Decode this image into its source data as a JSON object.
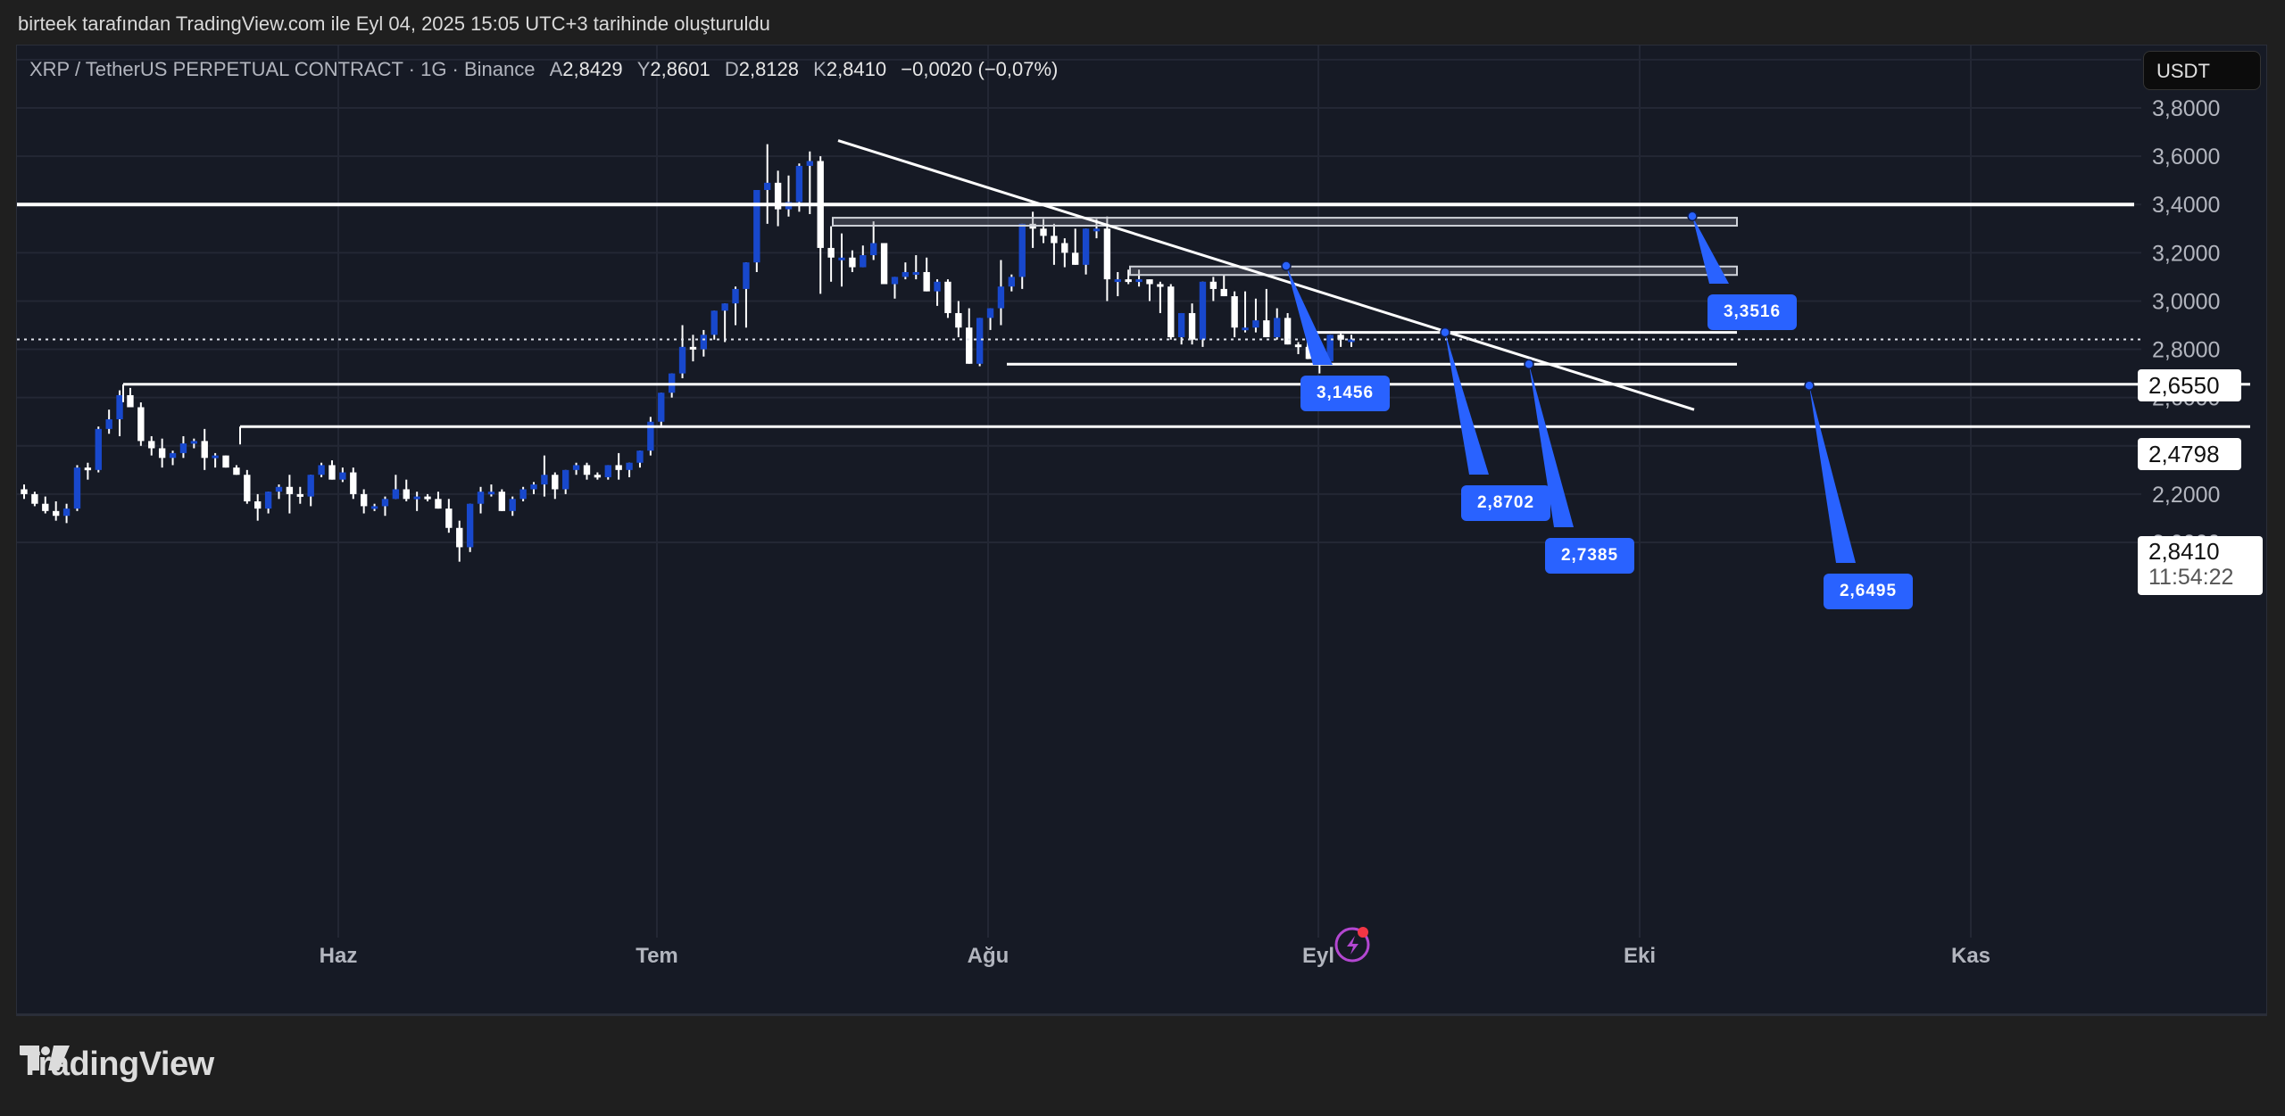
{
  "caption": "birteek tarafından TradingView.com ile Eyl 04, 2025 15:05 UTC+3 tarihinde oluşturuldu",
  "legend": {
    "symbol": "XRP / TetherUS PERPETUAL CONTRACT · 1G · Binance",
    "open_label": "A",
    "open": "2,8429",
    "high_label": "Y",
    "high": "2,8601",
    "low_label": "D",
    "low": "2,8128",
    "close_label": "K",
    "close": "2,8410",
    "change": "−0,0020 (−0,07%)"
  },
  "currency_button": "USDT",
  "price_tags": {
    "last_price": "2,8410",
    "countdown": "11:54:22",
    "level_1": "2,6550",
    "level_2": "2,4798"
  },
  "callouts": [
    {
      "label": "3,3516",
      "price": 3.3516
    },
    {
      "label": "3,1456",
      "price": 3.1456
    },
    {
      "label": "2,8702",
      "price": 2.8702
    },
    {
      "label": "2,7385",
      "price": 2.7385
    },
    {
      "label": "2,6495",
      "price": 2.6495
    }
  ],
  "brand": "TradingView",
  "colors": {
    "up": "#1848cc",
    "down": "#ffffff",
    "background": "#161a25",
    "grid": "#232734",
    "callout": "#2962ff",
    "lines": "#ffffff"
  },
  "chart_data": {
    "type": "candlestick",
    "title": "XRP / TetherUS PERPETUAL CONTRACT · 1G · Binance",
    "xlabel": "",
    "ylabel": "USDT",
    "ylim": [
      1.72,
      4.0
    ],
    "y_ticks": [
      "3,8000",
      "3,6000",
      "3,4000",
      "3,2000",
      "3,0000",
      "2,8000",
      "2,6000",
      "2,4000",
      "2,2000",
      "2,0000"
    ],
    "x_ticks": [
      "Haz",
      "Tem",
      "Ağu",
      "Eyl",
      "Eki",
      "Kas"
    ],
    "grid": true,
    "horizontal_lines": [
      3.4,
      2.655,
      2.4798,
      2.8702,
      2.7385
    ],
    "zones": [
      [
        3.31,
        3.34
      ],
      [
        3.11,
        3.145
      ]
    ],
    "trendline": {
      "from": [
        0,
        3.67
      ],
      "to": [
        0,
        2.54
      ]
    },
    "candles": [
      [
        2.22,
        2.24,
        2.18,
        2.2
      ],
      [
        2.2,
        2.21,
        2.15,
        2.16
      ],
      [
        2.16,
        2.19,
        2.12,
        2.13
      ],
      [
        2.13,
        2.17,
        2.09,
        2.11
      ],
      [
        2.11,
        2.16,
        2.08,
        2.14
      ],
      [
        2.14,
        2.32,
        2.13,
        2.31
      ],
      [
        2.31,
        2.33,
        2.26,
        2.3
      ],
      [
        2.3,
        2.48,
        2.29,
        2.47
      ],
      [
        2.47,
        2.55,
        2.45,
        2.51
      ],
      [
        2.51,
        2.63,
        2.44,
        2.61
      ],
      [
        2.61,
        2.64,
        2.56,
        2.56
      ],
      [
        2.56,
        2.58,
        2.4,
        2.42
      ],
      [
        2.42,
        2.44,
        2.36,
        2.39
      ],
      [
        2.39,
        2.43,
        2.31,
        2.35
      ],
      [
        2.35,
        2.38,
        2.32,
        2.37
      ],
      [
        2.37,
        2.44,
        2.35,
        2.41
      ],
      [
        2.41,
        2.43,
        2.39,
        2.42
      ],
      [
        2.42,
        2.47,
        2.3,
        2.35
      ],
      [
        2.35,
        2.37,
        2.31,
        2.36
      ],
      [
        2.36,
        2.36,
        2.31,
        2.31
      ],
      [
        2.31,
        2.32,
        2.28,
        2.28
      ],
      [
        2.28,
        2.3,
        2.16,
        2.17
      ],
      [
        2.17,
        2.2,
        2.09,
        2.14
      ],
      [
        2.14,
        2.21,
        2.12,
        2.21
      ],
      [
        2.21,
        2.24,
        2.18,
        2.23
      ],
      [
        2.23,
        2.28,
        2.12,
        2.2
      ],
      [
        2.2,
        2.23,
        2.16,
        2.19
      ],
      [
        2.19,
        2.28,
        2.15,
        2.28
      ],
      [
        2.28,
        2.33,
        2.27,
        2.32
      ],
      [
        2.32,
        2.34,
        2.26,
        2.26
      ],
      [
        2.26,
        2.31,
        2.25,
        2.29
      ],
      [
        2.29,
        2.31,
        2.18,
        2.2
      ],
      [
        2.2,
        2.22,
        2.12,
        2.15
      ],
      [
        2.15,
        2.16,
        2.13,
        2.15
      ],
      [
        2.15,
        2.19,
        2.11,
        2.18
      ],
      [
        2.18,
        2.28,
        2.18,
        2.22
      ],
      [
        2.22,
        2.26,
        2.17,
        2.18
      ],
      [
        2.18,
        2.21,
        2.13,
        2.19
      ],
      [
        2.19,
        2.2,
        2.17,
        2.18
      ],
      [
        2.18,
        2.21,
        2.14,
        2.14
      ],
      [
        2.14,
        2.18,
        2.04,
        2.06
      ],
      [
        2.06,
        2.09,
        1.92,
        1.98
      ],
      [
        1.98,
        2.16,
        1.96,
        2.16
      ],
      [
        2.16,
        2.23,
        2.12,
        2.21
      ],
      [
        2.21,
        2.24,
        2.19,
        2.21
      ],
      [
        2.21,
        2.22,
        2.13,
        2.13
      ],
      [
        2.13,
        2.19,
        2.11,
        2.18
      ],
      [
        2.18,
        2.23,
        2.17,
        2.22
      ],
      [
        2.22,
        2.25,
        2.2,
        2.24
      ],
      [
        2.24,
        2.36,
        2.19,
        2.28
      ],
      [
        2.28,
        2.29,
        2.18,
        2.22
      ],
      [
        2.22,
        2.3,
        2.2,
        2.3
      ],
      [
        2.3,
        2.33,
        2.28,
        2.32
      ],
      [
        2.32,
        2.33,
        2.26,
        2.28
      ],
      [
        2.28,
        2.29,
        2.26,
        2.27
      ],
      [
        2.27,
        2.3,
        2.26,
        2.32
      ],
      [
        2.32,
        2.37,
        2.26,
        2.3
      ],
      [
        2.3,
        2.33,
        2.27,
        2.33
      ],
      [
        2.33,
        2.38,
        2.31,
        2.38
      ],
      [
        2.38,
        2.52,
        2.36,
        2.5
      ],
      [
        2.5,
        2.57,
        2.48,
        2.62
      ],
      [
        2.62,
        2.66,
        2.6,
        2.7
      ],
      [
        2.7,
        2.9,
        2.68,
        2.81
      ],
      [
        2.81,
        2.86,
        2.75,
        2.8
      ],
      [
        2.8,
        2.88,
        2.77,
        2.86
      ],
      [
        2.86,
        2.96,
        2.84,
        2.96
      ],
      [
        2.96,
        2.98,
        2.83,
        2.99
      ],
      [
        2.99,
        3.06,
        2.9,
        3.05
      ],
      [
        3.05,
        3.09,
        2.89,
        3.16
      ],
      [
        3.16,
        3.41,
        3.12,
        3.46
      ],
      [
        3.46,
        3.65,
        3.32,
        3.49
      ],
      [
        3.49,
        3.54,
        3.31,
        3.38
      ],
      [
        3.38,
        3.52,
        3.35,
        3.41
      ],
      [
        3.41,
        3.57,
        3.37,
        3.56
      ],
      [
        3.56,
        3.62,
        3.36,
        3.58
      ],
      [
        3.58,
        3.6,
        3.03,
        3.22
      ],
      [
        3.22,
        3.31,
        3.08,
        3.18
      ],
      [
        3.18,
        3.28,
        3.06,
        3.18
      ],
      [
        3.18,
        3.21,
        3.12,
        3.14
      ],
      [
        3.14,
        3.23,
        3.14,
        3.19
      ],
      [
        3.19,
        3.33,
        3.17,
        3.24
      ],
      [
        3.24,
        3.22,
        3.11,
        3.07
      ],
      [
        3.07,
        3.09,
        3.01,
        3.1
      ],
      [
        3.1,
        3.16,
        3.09,
        3.12
      ],
      [
        3.12,
        3.19,
        3.09,
        3.12
      ],
      [
        3.12,
        3.18,
        3.05,
        3.04
      ],
      [
        3.04,
        3.09,
        2.98,
        3.08
      ],
      [
        3.08,
        3.09,
        2.93,
        2.95
      ],
      [
        2.95,
        3.0,
        2.85,
        2.89
      ],
      [
        2.89,
        2.97,
        2.76,
        2.74
      ],
      [
        2.74,
        2.74,
        2.73,
        2.93
      ],
      [
        2.93,
        2.97,
        2.88,
        2.97
      ],
      [
        2.97,
        3.17,
        2.9,
        3.06
      ],
      [
        3.06,
        3.11,
        3.04,
        3.1
      ],
      [
        3.1,
        3.32,
        3.05,
        3.32
      ],
      [
        3.32,
        3.37,
        3.22,
        3.3
      ],
      [
        3.3,
        3.34,
        3.24,
        3.27
      ],
      [
        3.27,
        3.32,
        3.15,
        3.24
      ],
      [
        3.24,
        3.26,
        3.14,
        3.2
      ],
      [
        3.2,
        3.3,
        3.18,
        3.15
      ],
      [
        3.15,
        3.28,
        3.11,
        3.3
      ],
      [
        3.3,
        3.34,
        3.26,
        3.3
      ],
      [
        3.3,
        3.35,
        3.0,
        3.09
      ],
      [
        3.09,
        3.12,
        3.02,
        3.09
      ],
      [
        3.09,
        3.13,
        3.07,
        3.08
      ],
      [
        3.08,
        3.13,
        3.06,
        3.09
      ],
      [
        3.09,
        3.06,
        3.0,
        3.07
      ],
      [
        3.07,
        3.08,
        2.95,
        3.06
      ],
      [
        3.06,
        3.07,
        2.84,
        2.85
      ],
      [
        2.85,
        2.93,
        2.82,
        2.95
      ],
      [
        2.95,
        2.99,
        2.82,
        2.84
      ],
      [
        2.84,
        3.08,
        2.81,
        3.08
      ],
      [
        3.08,
        3.1,
        3.0,
        3.05
      ],
      [
        3.05,
        3.11,
        3.02,
        3.02
      ],
      [
        3.02,
        3.04,
        2.85,
        2.89
      ],
      [
        2.89,
        3.04,
        2.87,
        2.89
      ],
      [
        2.89,
        3.01,
        2.87,
        2.92
      ],
      [
        2.92,
        3.05,
        2.87,
        2.85
      ],
      [
        2.85,
        2.97,
        2.84,
        2.93
      ],
      [
        2.93,
        2.95,
        2.82,
        2.82
      ],
      [
        2.82,
        2.83,
        2.78,
        2.81
      ],
      [
        2.81,
        2.86,
        2.76,
        2.76
      ],
      [
        2.76,
        2.79,
        2.7,
        2.75
      ],
      [
        2.75,
        2.86,
        2.74,
        2.86
      ],
      [
        2.86,
        2.87,
        2.81,
        2.84
      ],
      [
        2.84,
        2.86,
        2.81,
        2.841
      ]
    ]
  }
}
